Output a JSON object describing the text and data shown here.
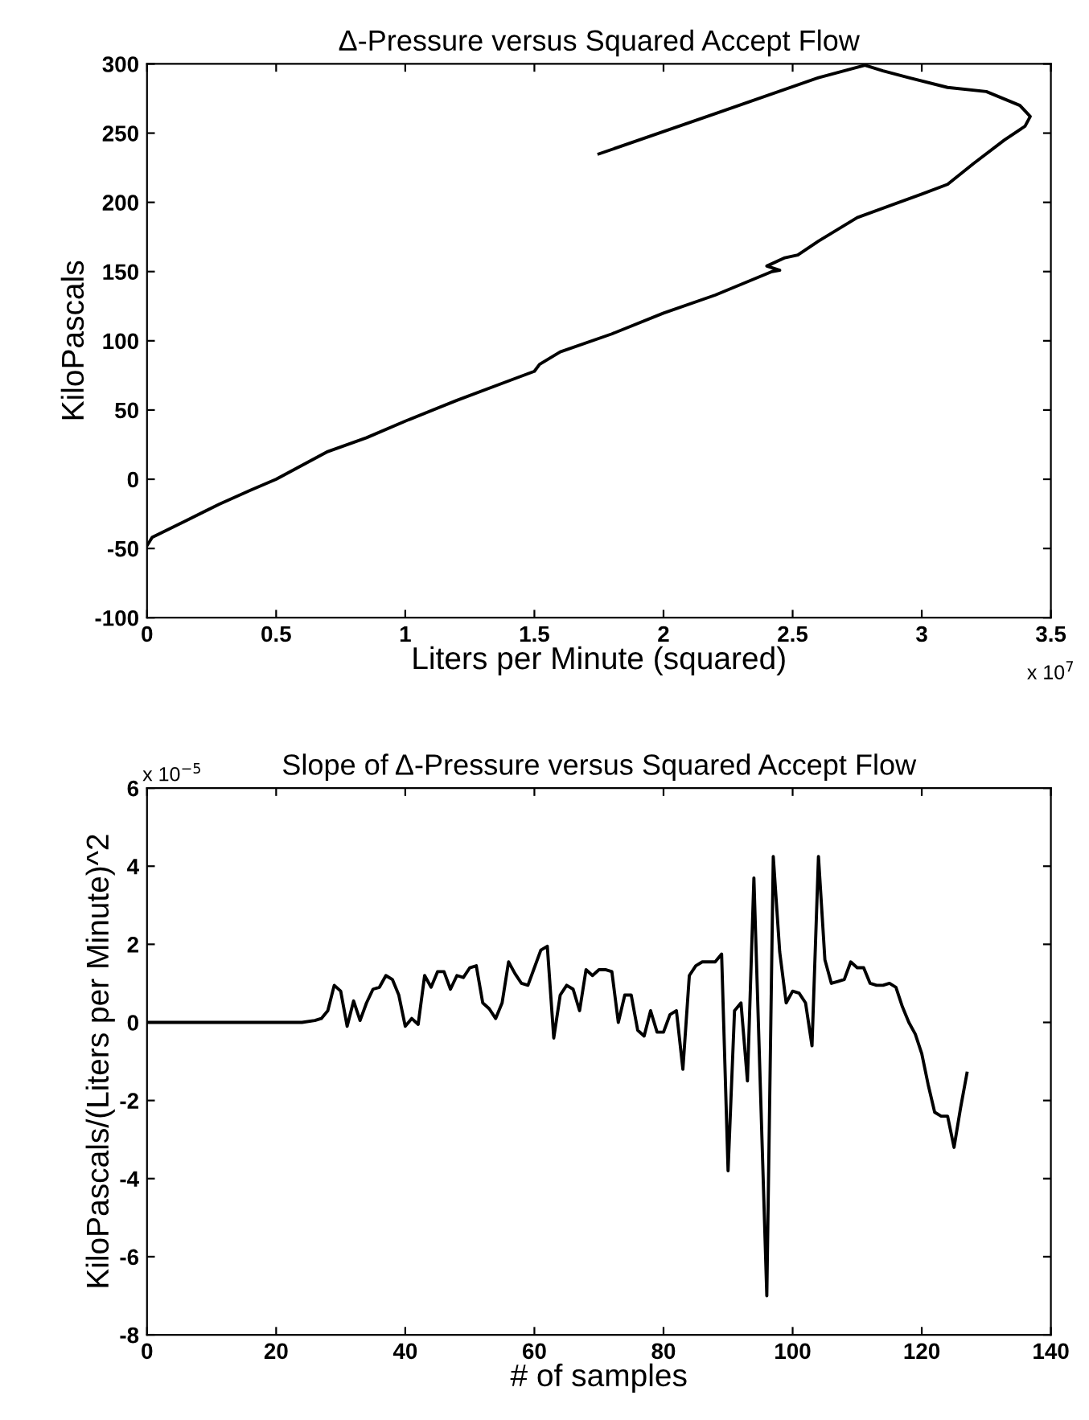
{
  "chart_data": [
    {
      "type": "line",
      "title": "Δ-Pressure versus Squared Accept Flow",
      "xlabel": "Liters per Minute (squared)",
      "ylabel": "KiloPascals",
      "annotations": [
        "x 10$^{7}$"
      ],
      "xlim": [
        0,
        3.5
      ],
      "xticks": [
        0,
        0.5,
        1,
        1.5,
        2,
        2.5,
        3,
        3.5
      ],
      "ylim": [
        -100,
        300
      ],
      "yticks": [
        -100,
        -50,
        0,
        50,
        100,
        150,
        200,
        250,
        300
      ],
      "grid": false,
      "legend": false,
      "series": [
        {
          "color": "#000000",
          "x": [
            0,
            0.02,
            0.15,
            0.28,
            0.4,
            0.5,
            0.6,
            0.7,
            0.85,
            1.0,
            1.2,
            1.4,
            1.5,
            1.52,
            1.6,
            1.8,
            2.0,
            2.2,
            2.42,
            2.45,
            2.4,
            2.47,
            2.52,
            2.6,
            2.75,
            3.0,
            3.1,
            3.2,
            3.32,
            3.4,
            3.42,
            3.38,
            3.25,
            3.1,
            2.95,
            2.85,
            2.78,
            2.6,
            2.2,
            1.75
          ],
          "values": [
            -48,
            -42,
            -30,
            -18,
            -8,
            0,
            10,
            20,
            30,
            42,
            57,
            71,
            78,
            83,
            92,
            105,
            120,
            133,
            150,
            151,
            154,
            160,
            162,
            172,
            189,
            206,
            213,
            228,
            245,
            255,
            262,
            270,
            280,
            283,
            290,
            295,
            299,
            290,
            264,
            235
          ]
        }
      ]
    },
    {
      "type": "line",
      "title": "Slope of Δ-Pressure versus Squared Accept Flow",
      "xlabel": "# of samples",
      "ylabel": "KiloPascals/(Liters per Minute)^2",
      "annotations": [
        "x 10$^{−5}$"
      ],
      "xlim": [
        0,
        140
      ],
      "xticks": [
        0,
        20,
        40,
        60,
        80,
        100,
        120,
        140
      ],
      "ylim": [
        -8,
        6
      ],
      "yticks": [
        -8,
        -6,
        -4,
        -2,
        0,
        2,
        4,
        6
      ],
      "grid": false,
      "legend": false,
      "series": [
        {
          "color": "#000000",
          "x": [
            0,
            24,
            26,
            27,
            28,
            29,
            30,
            31,
            32,
            33,
            34,
            35,
            36,
            37,
            38,
            39,
            40,
            41,
            42,
            43,
            44,
            45,
            46,
            47,
            48,
            49,
            50,
            51,
            52,
            53,
            54,
            55,
            56,
            57,
            58,
            59,
            60,
            61,
            62,
            63,
            64,
            65,
            66,
            67,
            68,
            69,
            70,
            71,
            72,
            73,
            74,
            75,
            76,
            77,
            78,
            79,
            80,
            81,
            82,
            83,
            84,
            85,
            86,
            87,
            88,
            89,
            90,
            91,
            92,
            93,
            94,
            96,
            97,
            98,
            99,
            100,
            101,
            102,
            103,
            104,
            105,
            106,
            107,
            108,
            109,
            110,
            111,
            112,
            113,
            114,
            115,
            116,
            117,
            118,
            119,
            120,
            121,
            122,
            123,
            124,
            125,
            126,
            127
          ],
          "values": [
            0,
            0,
            0.05,
            0.1,
            0.3,
            0.95,
            0.8,
            -0.1,
            0.55,
            0.05,
            0.5,
            0.85,
            0.9,
            1.2,
            1.1,
            0.7,
            -0.1,
            0.1,
            -0.05,
            1.2,
            0.9,
            1.3,
            1.3,
            0.85,
            1.2,
            1.15,
            1.4,
            1.45,
            0.5,
            0.35,
            0.1,
            0.5,
            1.55,
            1.25,
            1.0,
            0.95,
            1.4,
            1.85,
            1.95,
            -0.4,
            0.7,
            0.95,
            0.85,
            0.3,
            1.35,
            1.2,
            1.35,
            1.35,
            1.3,
            0,
            0.7,
            0.7,
            -0.2,
            -0.35,
            0.3,
            -0.25,
            -0.25,
            0.2,
            0.3,
            -1.2,
            1.2,
            1.45,
            1.55,
            1.55,
            1.55,
            1.75,
            -3.8,
            0.3,
            0.5,
            -1.5,
            3.7,
            -7.0,
            4.25,
            1.8,
            0.5,
            0.8,
            0.75,
            0.5,
            -0.6,
            4.25,
            1.6,
            1.0,
            1.05,
            1.1,
            1.55,
            1.4,
            1.4,
            1.0,
            0.95,
            0.95,
            1.0,
            0.9,
            0.4,
            0,
            -0.3,
            -0.8,
            -1.6,
            -2.3,
            -2.4,
            -2.4,
            -3.2,
            -2.2,
            -1.3
          ]
        }
      ]
    }
  ]
}
